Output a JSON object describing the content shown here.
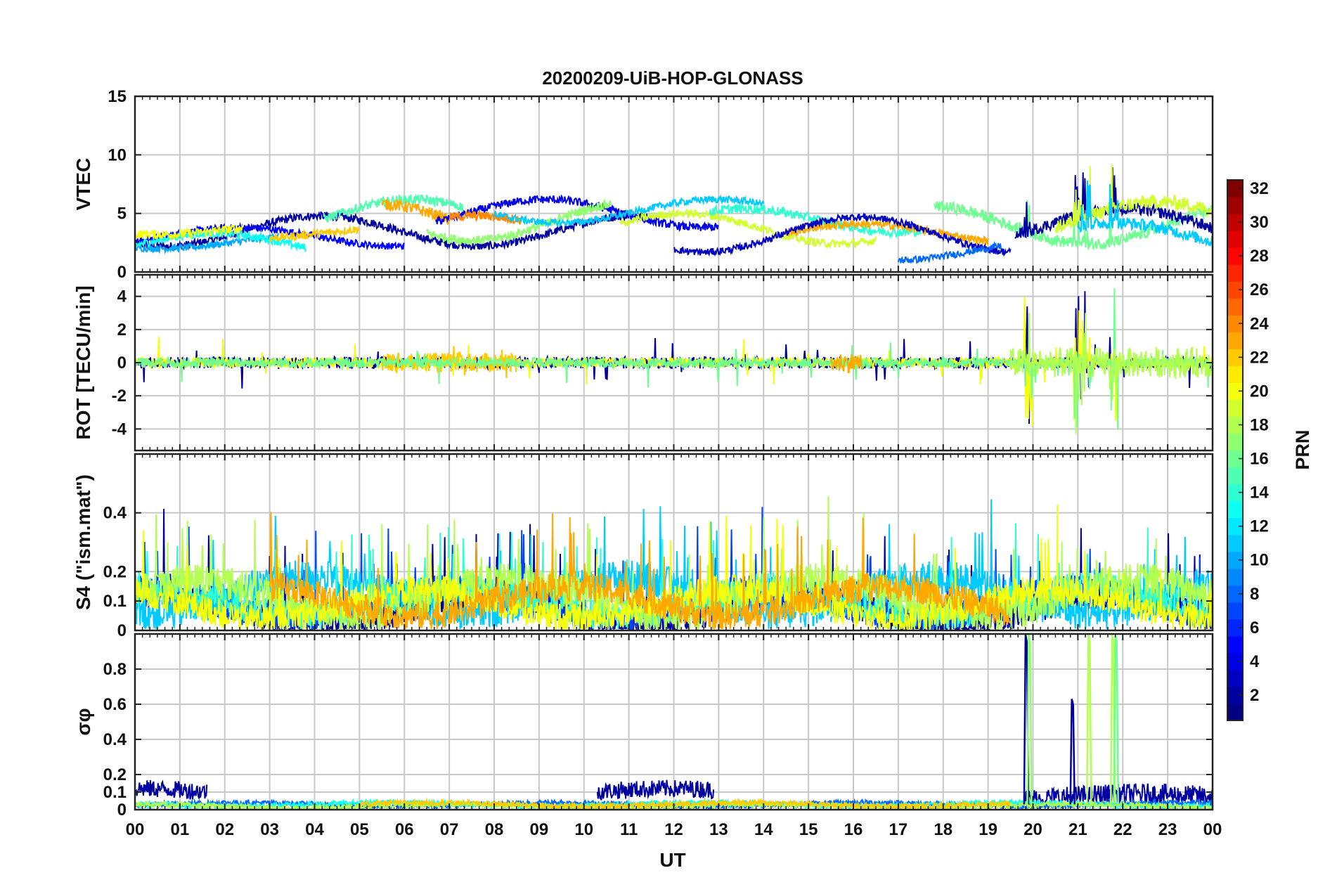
{
  "chart_data": {
    "type": "line",
    "title": "20200209-UiB-HOP-GLONASS",
    "xlabel": "UT",
    "x_ticks": [
      "00",
      "01",
      "02",
      "03",
      "04",
      "05",
      "06",
      "07",
      "08",
      "09",
      "10",
      "11",
      "12",
      "13",
      "14",
      "15",
      "16",
      "17",
      "18",
      "19",
      "20",
      "21",
      "22",
      "23",
      "00"
    ],
    "xlim_hours": [
      0,
      24
    ],
    "grid": true,
    "colorbar": {
      "label": "PRN",
      "range": [
        1,
        32
      ],
      "ticks": [
        "2",
        "4",
        "6",
        "8",
        "10",
        "12",
        "14",
        "16",
        "18",
        "20",
        "22",
        "24",
        "26",
        "28",
        "30",
        "32"
      ],
      "colormap": "jet",
      "placement": "right"
    },
    "panels": [
      {
        "id": "vtec",
        "ylabel": "VTEC",
        "ylim": [
          0,
          15
        ],
        "yticks": [
          "0",
          "5",
          "10",
          "15"
        ],
        "ytick_values": [
          0,
          5,
          10,
          15
        ],
        "series": [
          {
            "prn": 2,
            "start": 0.0,
            "end": 11.4,
            "base": 3.5,
            "amp": 1.3,
            "noise": 0.35
          },
          {
            "prn": 5,
            "start": 0.0,
            "end": 6.0,
            "base": 3.0,
            "amp": 0.8,
            "noise": 0.3
          },
          {
            "prn": 10,
            "start": 0.0,
            "end": 3.2,
            "base": 2.6,
            "amp": 0.6,
            "noise": 0.3
          },
          {
            "prn": 13,
            "start": 0.0,
            "end": 3.8,
            "base": 2.3,
            "amp": 1.0,
            "noise": 0.35
          },
          {
            "prn": 20,
            "start": 0.0,
            "end": 2.4,
            "base": 3.7,
            "amp": 0.5,
            "noise": 0.4
          },
          {
            "prn": 22,
            "start": 3.0,
            "end": 5.0,
            "base": 3.4,
            "amp": 0.5,
            "noise": 0.35
          },
          {
            "prn": 15,
            "start": 4.2,
            "end": 7.3,
            "base": 4.8,
            "amp": 1.4,
            "noise": 0.4
          },
          {
            "prn": 23,
            "start": 5.5,
            "end": 7.0,
            "base": 4.2,
            "amp": 1.6,
            "noise": 0.5
          },
          {
            "prn": 4,
            "start": 6.7,
            "end": 13.0,
            "base": 5.0,
            "amp": 1.2,
            "noise": 0.35
          },
          {
            "prn": 17,
            "start": 6.5,
            "end": 10.6,
            "base": 4.3,
            "amp": 1.6,
            "noise": 0.4
          },
          {
            "prn": 24,
            "start": 7.0,
            "end": 8.6,
            "base": 3.8,
            "amp": 1.0,
            "noise": 0.4
          },
          {
            "prn": 11,
            "start": 8.0,
            "end": 14.0,
            "base": 5.2,
            "amp": 1.0,
            "noise": 0.3
          },
          {
            "prn": 19,
            "start": 10.8,
            "end": 16.5,
            "base": 3.7,
            "amp": 1.3,
            "noise": 0.35
          },
          {
            "prn": 14,
            "start": 12.8,
            "end": 17.5,
            "base": 4.4,
            "amp": 1.0,
            "noise": 0.4
          },
          {
            "prn": 23,
            "start": 14.5,
            "end": 19.0,
            "base": 3.3,
            "amp": 0.8,
            "noise": 0.35
          },
          {
            "prn": 3,
            "start": 12.0,
            "end": 19.5,
            "base": 3.2,
            "amp": 1.5,
            "noise": 0.3
          },
          {
            "prn": 8,
            "start": 17.0,
            "end": 19.3,
            "base": 1.8,
            "amp": 0.8,
            "noise": 0.3
          },
          {
            "prn": 16,
            "start": 17.8,
            "end": 24.0,
            "base": 4.0,
            "amp": 1.6,
            "noise": 0.5
          },
          {
            "prn": 2,
            "start": 19.6,
            "end": 24.0,
            "base": 4.0,
            "amp": 1.4,
            "noise": 0.5
          },
          {
            "prn": 19,
            "start": 20.5,
            "end": 24.0,
            "base": 4.5,
            "amp": 1.5,
            "noise": 0.6
          },
          {
            "prn": 11,
            "start": 21.0,
            "end": 24.0,
            "base": 3.0,
            "amp": 1.2,
            "noise": 0.5
          }
        ]
      },
      {
        "id": "rot",
        "ylabel": "ROT [TECU/min]",
        "ylim": [
          -5.3,
          5.3
        ],
        "yticks": [
          "-4",
          "-2",
          "0",
          "2",
          "4"
        ],
        "ytick_values": [
          -4,
          -2,
          0,
          2,
          4
        ],
        "series": [
          {
            "prn": 2,
            "start": 0.0,
            "end": 24.0,
            "base": 0,
            "amp": 0,
            "noise": 0.35
          },
          {
            "prn": 20,
            "start": 0.0,
            "end": 24.0,
            "base": 0,
            "amp": 0,
            "noise": 0.3
          },
          {
            "prn": 22,
            "start": 5.5,
            "end": 8.5,
            "base": 0,
            "amp": 0,
            "noise": 0.6
          },
          {
            "prn": 16,
            "start": 0.0,
            "end": 24.0,
            "base": 0,
            "amp": 0,
            "noise": 0.3
          },
          {
            "prn": 23,
            "start": 15.5,
            "end": 16.2,
            "base": 0,
            "amp": 0,
            "noise": 0.6
          },
          {
            "prn": 18,
            "start": 19.5,
            "end": 24.0,
            "base": 0,
            "amp": 0,
            "noise": 0.9
          }
        ]
      },
      {
        "id": "s4",
        "ylabel": "S4 (\"ism.mat\")",
        "ylim": [
          0,
          0.6
        ],
        "yticks": [
          "0",
          "0.1",
          "0.2",
          "0.4"
        ],
        "ytick_values": [
          0,
          0.1,
          0.2,
          0.4
        ],
        "series": [
          {
            "prn": 2,
            "start": 0.0,
            "end": 24.0,
            "base": 0.07,
            "amp": 0.05,
            "noise": 0.05
          },
          {
            "prn": 7,
            "start": 0.0,
            "end": 24.0,
            "base": 0.09,
            "amp": 0.05,
            "noise": 0.05
          },
          {
            "prn": 11,
            "start": 0.0,
            "end": 24.0,
            "base": 0.12,
            "amp": 0.06,
            "noise": 0.06
          },
          {
            "prn": 14,
            "start": 0.0,
            "end": 24.0,
            "base": 0.1,
            "amp": 0.05,
            "noise": 0.05
          },
          {
            "prn": 18,
            "start": 0.0,
            "end": 24.0,
            "base": 0.11,
            "amp": 0.06,
            "noise": 0.06
          },
          {
            "prn": 20,
            "start": 0.0,
            "end": 24.0,
            "base": 0.09,
            "amp": 0.05,
            "noise": 0.05
          },
          {
            "prn": 23,
            "start": 3.0,
            "end": 19.5,
            "base": 0.1,
            "amp": 0.05,
            "noise": 0.05
          }
        ]
      },
      {
        "id": "sigma_phi",
        "ylabel": "σφ",
        "ylim": [
          0,
          1.0
        ],
        "yticks": [
          "0",
          "0.1",
          "0.2",
          "0.4",
          "0.6",
          "0.8"
        ],
        "ytick_values": [
          0,
          0.1,
          0.2,
          0.4,
          0.6,
          0.8
        ],
        "series": [
          {
            "prn": 2,
            "start": 0.0,
            "end": 1.6,
            "base": 0.1,
            "amp": 0.02,
            "noise": 0.05
          },
          {
            "prn": 2,
            "start": 10.3,
            "end": 12.9,
            "base": 0.1,
            "amp": 0.02,
            "noise": 0.05
          },
          {
            "prn": 2,
            "start": 19.8,
            "end": 24.0,
            "base": 0.07,
            "amp": 0.02,
            "noise": 0.06
          },
          {
            "prn": 8,
            "start": 0.0,
            "end": 24.0,
            "base": 0.03,
            "amp": 0.01,
            "noise": 0.015
          },
          {
            "prn": 13,
            "start": 0.0,
            "end": 24.0,
            "base": 0.03,
            "amp": 0.01,
            "noise": 0.015
          },
          {
            "prn": 18,
            "start": 0.0,
            "end": 24.0,
            "base": 0.02,
            "amp": 0.01,
            "noise": 0.015
          },
          {
            "prn": 22,
            "start": 5.0,
            "end": 19.5,
            "base": 0.03,
            "amp": 0.01,
            "noise": 0.015
          }
        ],
        "spikes": [
          {
            "prn": 2,
            "hour": 19.85,
            "peak": 1.0
          },
          {
            "prn": 17,
            "hour": 19.92,
            "peak": 1.0
          },
          {
            "prn": 2,
            "hour": 20.88,
            "peak": 0.63
          },
          {
            "prn": 18,
            "hour": 21.25,
            "peak": 1.0
          },
          {
            "prn": 18,
            "hour": 21.78,
            "peak": 1.0
          },
          {
            "prn": 16,
            "hour": 21.85,
            "peak": 1.0
          }
        ]
      }
    ]
  }
}
